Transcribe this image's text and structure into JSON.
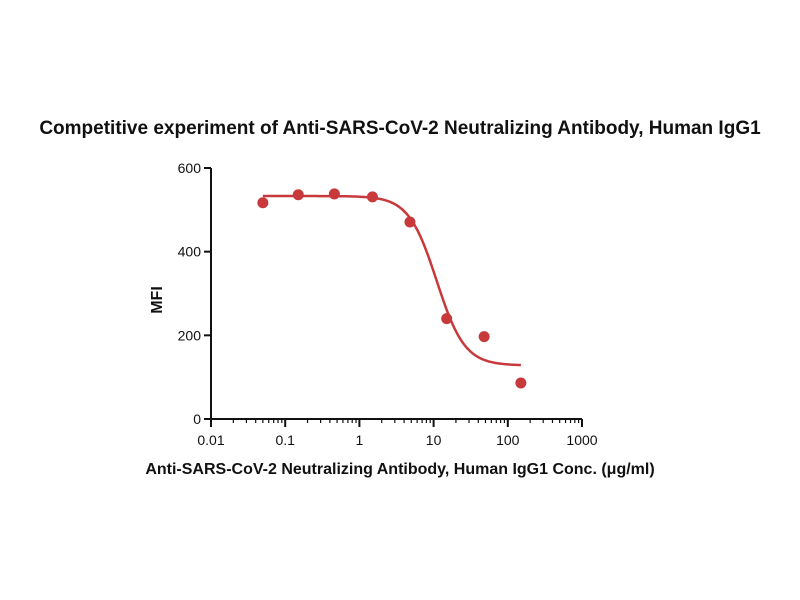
{
  "chart_data": {
    "type": "scatter",
    "title": "Competitive experiment of Anti-SARS-CoV-2 Neutralizing Antibody, Human IgG1",
    "xlabel": "Anti-SARS-CoV-2 Neutralizing Antibody, Human IgG1 Conc. (μg/ml)",
    "ylabel": "MFI",
    "xscale": "log",
    "xlim": [
      0.01,
      1000
    ],
    "ylim": [
      0,
      600
    ],
    "xticks": [
      0.01,
      0.1,
      1,
      10,
      100,
      1000
    ],
    "xtick_labels": [
      "0.01",
      "0.1",
      "1",
      "10",
      "100",
      "1000"
    ],
    "yticks": [
      0,
      200,
      400,
      600
    ],
    "ytick_labels": [
      "0",
      "200",
      "400",
      "600"
    ],
    "grid": false,
    "legend": "none",
    "color": "#c8393b",
    "series": [
      {
        "points": [
          {
            "x": 0.05,
            "y": 517
          },
          {
            "x": 0.15,
            "y": 536
          },
          {
            "x": 0.46,
            "y": 538
          },
          {
            "x": 1.5,
            "y": 531
          },
          {
            "x": 4.8,
            "y": 471
          },
          {
            "x": 15,
            "y": 240
          },
          {
            "x": 48,
            "y": 197
          },
          {
            "x": 150,
            "y": 86
          }
        ],
        "fit": {
          "type": "four-parameter logistic",
          "top": 533,
          "bottom": 128,
          "ec50": 11,
          "hill": 2.3,
          "x_range": [
            0.05,
            150
          ]
        }
      }
    ]
  }
}
